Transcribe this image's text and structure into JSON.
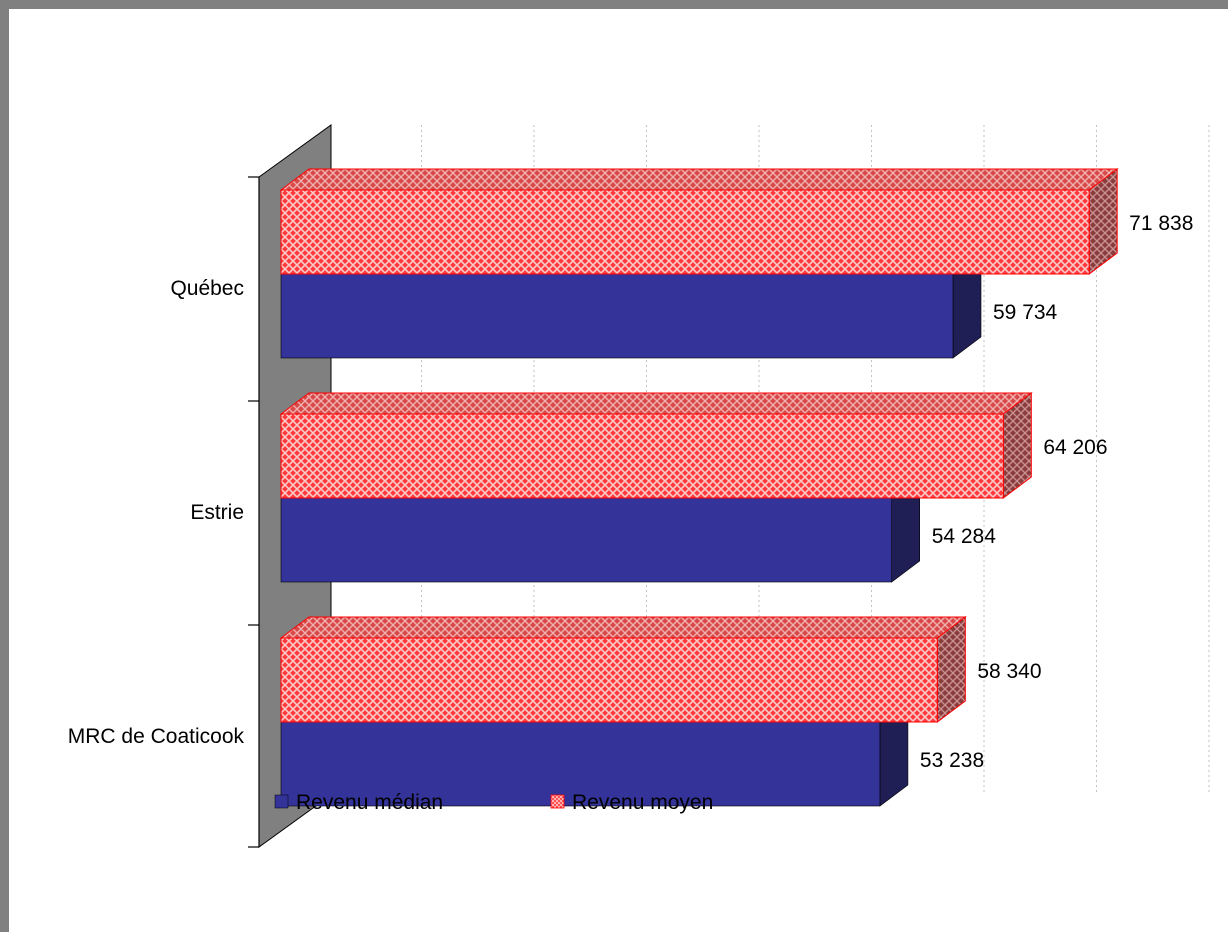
{
  "chart_data": {
    "type": "bar",
    "orientation": "horizontal",
    "style": "3d",
    "categories": [
      "Québec",
      "Estrie",
      "MRC de Coaticook"
    ],
    "series": [
      {
        "name": "Revenu moyen",
        "values": [
          71838,
          64206,
          58340
        ],
        "labels": [
          "71 838",
          "64 206",
          "58 340"
        ],
        "color": "#ff3b3b"
      },
      {
        "name": "Revenu médian",
        "values": [
          59734,
          54284,
          53238
        ],
        "labels": [
          "59 734",
          "54 284",
          "53 238"
        ],
        "color": "#333399"
      }
    ],
    "xlim": [
      0,
      80000
    ],
    "grid": true,
    "legend": {
      "position": "bottom-left",
      "entries": [
        "Revenu médian",
        "Revenu moyen"
      ]
    }
  },
  "colors": {
    "wall": "#808080",
    "median_front": "#333399",
    "median_side": "#1f1f55",
    "mean_fill": "#ff3b3b",
    "mean_pattern": "#ffc8c8",
    "mean_edge": "#ff0000"
  }
}
